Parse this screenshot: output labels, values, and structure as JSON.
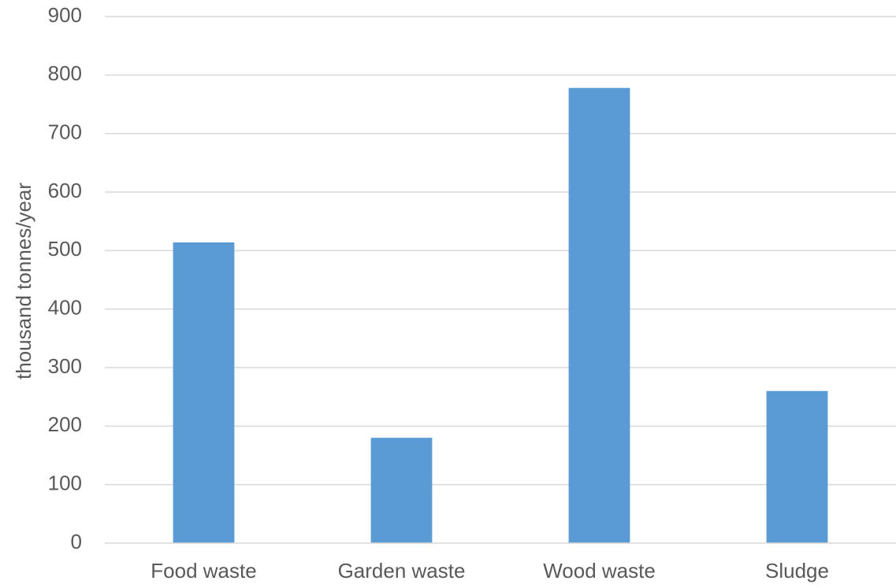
{
  "chart_data": {
    "type": "bar",
    "title": "",
    "xlabel": "",
    "ylabel": "thousand tonnes/year",
    "categories": [
      "Food waste",
      "Garden waste",
      "Wood waste",
      "Sludge"
    ],
    "series": [
      {
        "values": [
          514,
          180,
          778,
          260
        ]
      }
    ],
    "ylim": [
      0,
      900
    ],
    "yticks": [
      0,
      100,
      200,
      300,
      400,
      500,
      600,
      700,
      800,
      900
    ],
    "grid": true,
    "legend": "none",
    "colors": {
      "bar": "#5b9bd5",
      "grid": "#d9d9d9",
      "axis": "#d9d9d9",
      "text": "#595959"
    }
  }
}
